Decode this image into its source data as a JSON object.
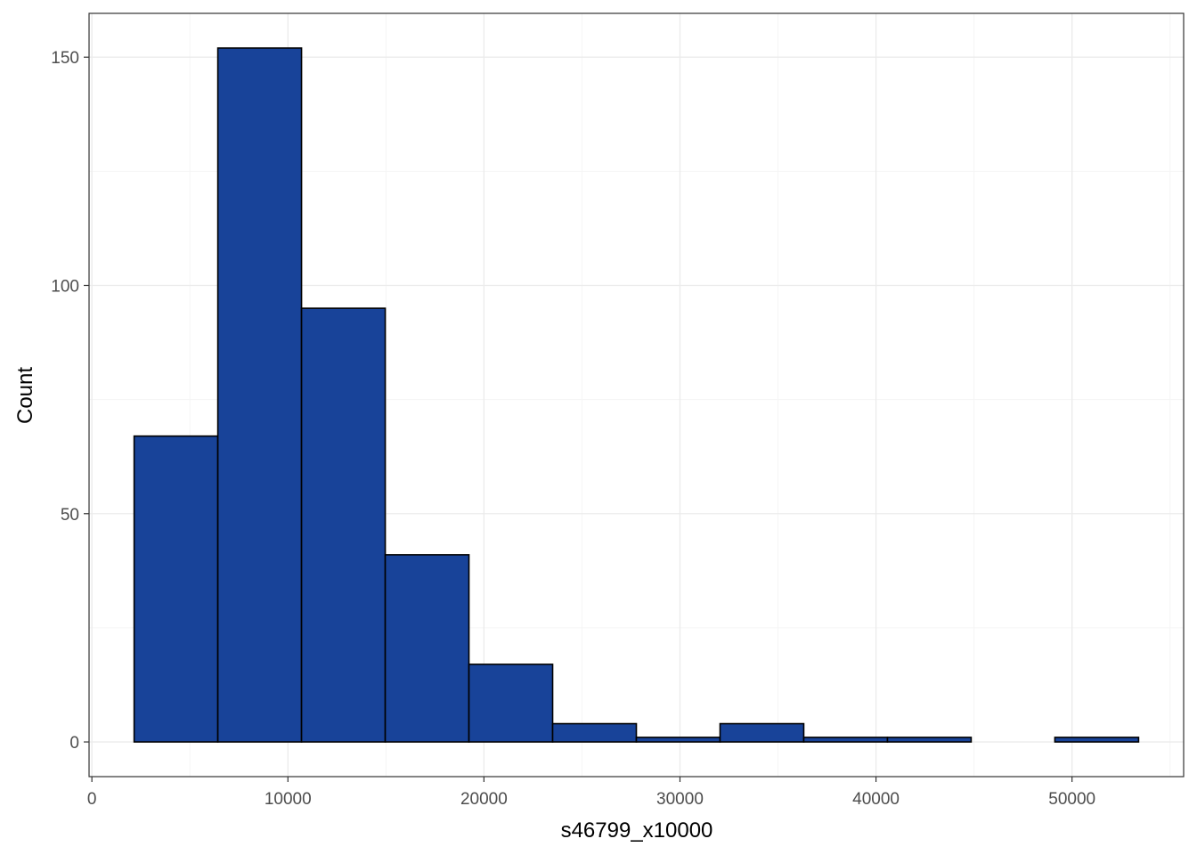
{
  "chart_data": {
    "type": "bar",
    "title": "",
    "xlabel": "s46799_x10000",
    "ylabel": "Count",
    "bins": [
      {
        "x0": 2155,
        "x1": 6425,
        "count": 67
      },
      {
        "x0": 6425,
        "x1": 10695,
        "count": 152
      },
      {
        "x0": 10695,
        "x1": 14965,
        "count": 95
      },
      {
        "x0": 14965,
        "x1": 19235,
        "count": 41
      },
      {
        "x0": 19235,
        "x1": 23505,
        "count": 17
      },
      {
        "x0": 23505,
        "x1": 27775,
        "count": 4
      },
      {
        "x0": 27775,
        "x1": 32045,
        "count": 1
      },
      {
        "x0": 32045,
        "x1": 36315,
        "count": 4
      },
      {
        "x0": 36315,
        "x1": 40585,
        "count": 1
      },
      {
        "x0": 40585,
        "x1": 44855,
        "count": 1
      },
      {
        "x0": 44855,
        "x1": 49125,
        "count": 0
      },
      {
        "x0": 49125,
        "x1": 53395,
        "count": 1
      }
    ],
    "xlim": [
      -144,
      55694
    ],
    "ylim": [
      -7.6,
      159.6
    ],
    "x_ticks": [
      0,
      10000,
      20000,
      30000,
      40000,
      50000
    ],
    "x_tick_labels": [
      "0",
      "10000",
      "20000",
      "30000",
      "40000",
      "50000"
    ],
    "y_ticks": [
      0,
      50,
      100,
      150
    ],
    "y_tick_labels": [
      "0",
      "50",
      "100",
      "150"
    ],
    "x_minor_ticks": [
      5000,
      15000,
      25000,
      35000,
      45000,
      55000
    ],
    "y_minor_ticks": [
      25,
      75,
      125
    ],
    "grid": true,
    "colors": {
      "bar_fill": "#184399",
      "bar_stroke": "#000000",
      "grid_major": "#ebebeb",
      "grid_minor": "#f5f5f5",
      "panel_border": "#333333"
    }
  }
}
